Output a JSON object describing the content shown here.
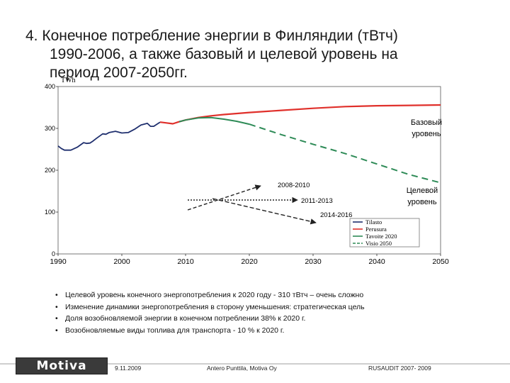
{
  "slide": {
    "title_line1": "4. Конечное потребление энергии в Финляндии (тВтч)",
    "title_line2": "1990-2006, а также базовый и целевой уровень на",
    "title_line3": "период 2007-2050гг.",
    "bullets": [
      "Целевой уровень конечного энергопотребления к 2020 году - 310 тВтч – очень сложно",
      "Изменение динамики энергопотребления в сторону уменьшения: стратегическая цель",
      "Доля возобновляемой энергии в конечном потреблении 38% к 2020 г.",
      "Возобновляемые виды топлива для транспорта - 10 % к 2020 г."
    ],
    "footer": {
      "logo": "Motiva",
      "date": "9.11.2009",
      "author": "Antero Punttila, Motiva Oy",
      "event": "RUSAUDIT 2007- 2009"
    }
  },
  "colors": {
    "historical": "#1f2f6e",
    "baseline": "#e0302b",
    "target": "#2e8b57",
    "vision": "#2e8b57",
    "arrow": "#222222"
  },
  "chart_data": {
    "type": "line",
    "unit_label": "TWh",
    "xlim": [
      1990,
      2050
    ],
    "ylim": [
      0,
      400
    ],
    "x_ticks": [
      1990,
      2000,
      2010,
      2020,
      2030,
      2040,
      2050
    ],
    "y_ticks": [
      0,
      100,
      200,
      300,
      400
    ],
    "grid": false,
    "legend_position": "right",
    "series": [
      {
        "name": "Tilasto",
        "style": "solid",
        "x": [
          1990,
          1990.5,
          1991,
          1992,
          1993,
          1994,
          1994.5,
          1995,
          1995.5,
          1996,
          1997,
          1997.5,
          1998,
          1999,
          2000,
          2001,
          2002,
          2003,
          2004,
          2004.5,
          2005,
          2006
        ],
        "y": [
          258,
          252,
          248,
          248,
          255,
          266,
          264,
          265,
          270,
          276,
          287,
          286,
          290,
          293,
          289,
          290,
          298,
          308,
          312,
          305,
          305,
          315
        ]
      },
      {
        "name": "Perusura",
        "style": "solid",
        "x": [
          2006,
          2007,
          2008,
          2009,
          2010,
          2012,
          2014,
          2016,
          2020,
          2025,
          2030,
          2035,
          2040,
          2045,
          2050
        ],
        "y": [
          315,
          313,
          311,
          316,
          320,
          326,
          330,
          333,
          338,
          343,
          348,
          352,
          354,
          355,
          356
        ]
      },
      {
        "name": "Tavoite 2020",
        "style": "solid",
        "x": [
          2009,
          2010,
          2012,
          2014,
          2016,
          2018,
          2020
        ],
        "y": [
          316,
          320,
          325,
          326,
          322,
          317,
          310
        ]
      },
      {
        "name": "Visio 2050",
        "style": "dashed",
        "x": [
          2020,
          2025,
          2030,
          2035,
          2040,
          2045,
          2050
        ],
        "y": [
          310,
          285,
          262,
          240,
          215,
          190,
          170
        ]
      }
    ],
    "annotations": [
      {
        "text": "Базовый уровень",
        "anchor": "Perusura"
      },
      {
        "text": "Целевой уровень",
        "anchor": "Visio 2050"
      },
      {
        "text": "2008-2010"
      },
      {
        "text": "2011-2013"
      },
      {
        "text": "2014-2016"
      }
    ]
  }
}
